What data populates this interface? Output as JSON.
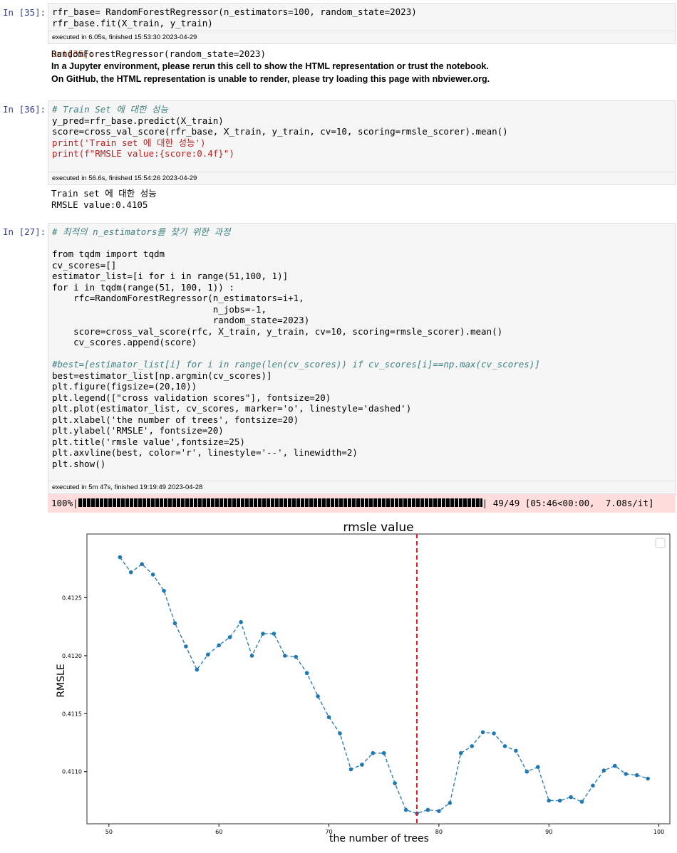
{
  "cells": [
    {
      "prompt_in": "In [35]:",
      "code_lines": [
        "rfr_base= RandomForestRegressor(n_estimators=100, random_state=2023)",
        "rfr_base.fit(X_train, y_train)"
      ],
      "exec_info": "executed in 6.05s, finished 15:53:30 2023-04-29",
      "prompt_out": "Out[35]:",
      "output": [
        "RandomForestRegressor(random_state=2023)",
        "In a Jupyter environment, please rerun this cell to show the HTML representation or trust the notebook.",
        "On GitHub, the HTML representation is unable to render, please try loading this page with nbviewer.org."
      ]
    },
    {
      "prompt_in": "In [36]:",
      "code_lines": [
        "# Train Set 에 대한 성능",
        "y_pred=rfr_base.predict(X_train)",
        "score=cross_val_score(rfr_base, X_train, y_train, cv=10, scoring=rmsle_scorer).mean()",
        "print('Train set 에 대한 성능')",
        "print(f\"RMSLE value:{score:0.4f}\")"
      ],
      "exec_info": "executed in 56.6s, finished 15:54:26 2023-04-29",
      "output": [
        "Train set 에 대한 성능",
        "RMSLE value:0.4105"
      ]
    },
    {
      "prompt_in": "In [27]:",
      "code_lines": [
        "# 최적의 n_estimators를 찾기 위한 과정",
        "",
        "from tqdm import tqdm",
        "cv_scores=[]",
        "estimator_list=[i for i in range(51,100, 1)]",
        "for i in tqdm(range(51, 100, 1)) :",
        "    rfc=RandomForestRegressor(n_estimators=i+1,",
        "                              n_jobs=-1,",
        "                              random_state=2023)",
        "    score=cross_val_score(rfc, X_train, y_train, cv=10, scoring=rmsle_scorer).mean()",
        "    cv_scores.append(score)",
        "",
        "#best=[estimator_list[i] for i in range(len(cv_scores)) if cv_scores[i]==np.max(cv_scores)]",
        "best=estimator_list[np.argmin(cv_scores)]",
        "plt.figure(figsize=(20,10))",
        "plt.legend([\"cross validation scores\"], fontsize=20)",
        "plt.plot(estimator_list, cv_scores, marker='o', linestyle='dashed')",
        "plt.xlabel('the number of trees', fontsize=20)",
        "plt.ylabel('RMSLE', fontsize=20)",
        "plt.title('rmsle value',fontsize=25)",
        "plt.axvline(best, color='r', linestyle='--', linewidth=2)",
        "plt.show()"
      ],
      "exec_info": "executed in 5m 47s, finished 19:19:49 2023-04-28",
      "progress": {
        "pct": "100%",
        "fraction": 1.0,
        "count": "49/49",
        "timing": "[05:46<00:00,  7.08s/it]"
      }
    }
  ],
  "chart_data": {
    "type": "line",
    "title": "rmsle value",
    "xlabel": "the number of trees",
    "ylabel": "RMSLE",
    "xlim": [
      48,
      101
    ],
    "ylim": [
      0.41055,
      0.41305
    ],
    "xticks": [
      50,
      60,
      70,
      80,
      90,
      100
    ],
    "yticks": [
      0.411,
      0.4115,
      0.412,
      0.4125
    ],
    "ytick_labels": [
      "0.4110",
      "0.4115",
      "0.4120",
      "0.4125"
    ],
    "series": [
      {
        "color": "#1f77b4",
        "linestyle": "dashed",
        "marker": "o",
        "x": [
          51,
          52,
          53,
          54,
          55,
          56,
          57,
          58,
          59,
          60,
          61,
          62,
          63,
          64,
          65,
          66,
          67,
          68,
          69,
          70,
          71,
          72,
          73,
          74,
          75,
          76,
          77,
          78,
          79,
          80,
          81,
          82,
          83,
          84,
          85,
          86,
          87,
          88,
          89,
          90,
          91,
          92,
          93,
          94,
          95,
          96,
          97,
          98,
          99
        ],
        "y": [
          0.41285,
          0.41272,
          0.41279,
          0.4127,
          0.41256,
          0.41228,
          0.41208,
          0.41188,
          0.41201,
          0.41209,
          0.41216,
          0.41229,
          0.412,
          0.41219,
          0.41219,
          0.412,
          0.41199,
          0.41185,
          0.41165,
          0.41147,
          0.41133,
          0.41102,
          0.41106,
          0.41116,
          0.41116,
          0.4109,
          0.41067,
          0.41064,
          0.41067,
          0.41066,
          0.41073,
          0.41116,
          0.41122,
          0.41134,
          0.41133,
          0.41122,
          0.41118,
          0.411,
          0.41104,
          0.41075,
          0.41075,
          0.41078,
          0.41074,
          0.41088,
          0.41101,
          0.41105,
          0.41098,
          0.41097,
          0.41094
        ]
      }
    ],
    "axvline": {
      "x": 78,
      "color": "#e41a1c",
      "linestyle": "--"
    },
    "grid": false,
    "legend": {
      "placement": "top-right",
      "entries": []
    }
  }
}
